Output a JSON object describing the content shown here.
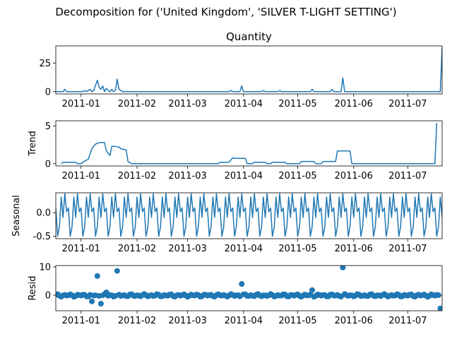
{
  "figure": {
    "suptitle": "Decomposition for ('United Kingdom', 'SILVER T-LIGHT SETTING')"
  },
  "chart_data": [
    {
      "type": "line",
      "title": "Quantity",
      "ylabel": "",
      "ylim": [
        -2,
        40
      ],
      "yticks": [
        0,
        25
      ],
      "x_range": [
        "2010-12-18",
        "2011-07-20"
      ],
      "xticks": [
        "2011-01",
        "2011-02",
        "2011-03",
        "2011-04",
        "2011-05",
        "2011-06",
        "2011-07"
      ],
      "color": "#1f77b4",
      "points": [
        [
          "2010-12-18",
          0
        ],
        [
          "2010-12-22",
          0
        ],
        [
          "2010-12-23",
          2
        ],
        [
          "2010-12-24",
          0
        ],
        [
          "2011-01-02",
          0
        ],
        [
          "2011-01-03",
          1
        ],
        [
          "2011-01-04",
          0
        ],
        [
          "2011-01-05",
          1
        ],
        [
          "2011-01-06",
          2
        ],
        [
          "2011-01-07",
          0
        ],
        [
          "2011-01-08",
          1
        ],
        [
          "2011-01-10",
          10
        ],
        [
          "2011-01-11",
          4
        ],
        [
          "2011-01-12",
          2
        ],
        [
          "2011-01-13",
          5
        ],
        [
          "2011-01-14",
          0
        ],
        [
          "2011-01-15",
          3
        ],
        [
          "2011-01-16",
          1
        ],
        [
          "2011-01-17",
          0
        ],
        [
          "2011-01-18",
          2
        ],
        [
          "2011-01-19",
          0
        ],
        [
          "2011-01-20",
          1
        ],
        [
          "2011-01-21",
          11
        ],
        [
          "2011-01-22",
          2
        ],
        [
          "2011-01-24",
          0
        ],
        [
          "2011-03-24",
          0
        ],
        [
          "2011-03-25",
          1
        ],
        [
          "2011-03-26",
          0
        ],
        [
          "2011-03-30",
          0
        ],
        [
          "2011-03-31",
          5
        ],
        [
          "2011-04-01",
          0
        ],
        [
          "2011-04-11",
          0
        ],
        [
          "2011-04-12",
          1
        ],
        [
          "2011-04-13",
          0
        ],
        [
          "2011-04-20",
          0
        ],
        [
          "2011-04-21",
          1
        ],
        [
          "2011-04-22",
          0
        ],
        [
          "2011-05-08",
          0
        ],
        [
          "2011-05-09",
          2
        ],
        [
          "2011-05-10",
          0
        ],
        [
          "2011-05-19",
          0
        ],
        [
          "2011-05-20",
          2
        ],
        [
          "2011-05-21",
          0
        ],
        [
          "2011-05-25",
          0
        ],
        [
          "2011-05-26",
          12
        ],
        [
          "2011-05-27",
          0
        ],
        [
          "2011-07-19",
          0
        ],
        [
          "2011-07-20",
          38
        ]
      ]
    },
    {
      "type": "line",
      "title": "",
      "ylabel": "Trend",
      "ylim": [
        -0.3,
        5.7
      ],
      "yticks": [
        0,
        5
      ],
      "x_range": [
        "2010-12-18",
        "2011-07-20"
      ],
      "xticks": [
        "2011-01",
        "2011-02",
        "2011-03",
        "2011-04",
        "2011-05",
        "2011-06",
        "2011-07"
      ],
      "color": "#1f77b4",
      "points": [
        [
          "2010-12-21",
          0.0
        ],
        [
          "2010-12-22",
          0.2
        ],
        [
          "2010-12-29",
          0.2
        ],
        [
          "2010-12-30",
          0.0
        ],
        [
          "2011-01-01",
          0.0
        ],
        [
          "2011-01-02",
          0.2
        ],
        [
          "2011-01-05",
          0.6
        ],
        [
          "2011-01-07",
          2.0
        ],
        [
          "2011-01-09",
          2.6
        ],
        [
          "2011-01-11",
          2.8
        ],
        [
          "2011-01-14",
          2.8
        ],
        [
          "2011-01-15",
          1.7
        ],
        [
          "2011-01-17",
          1.1
        ],
        [
          "2011-01-18",
          2.3
        ],
        [
          "2011-01-20",
          2.3
        ],
        [
          "2011-01-22",
          2.2
        ],
        [
          "2011-01-23",
          2.0
        ],
        [
          "2011-01-26",
          1.8
        ],
        [
          "2011-01-27",
          0.3
        ],
        [
          "2011-01-29",
          0.0
        ],
        [
          "2011-03-18",
          0.0
        ],
        [
          "2011-03-19",
          0.2
        ],
        [
          "2011-03-24",
          0.2
        ],
        [
          "2011-03-26",
          0.8
        ],
        [
          "2011-03-27",
          0.7
        ],
        [
          "2011-04-02",
          0.7
        ],
        [
          "2011-04-03",
          0.0
        ],
        [
          "2011-04-06",
          0.0
        ],
        [
          "2011-04-07",
          0.2
        ],
        [
          "2011-04-13",
          0.2
        ],
        [
          "2011-04-14",
          0.0
        ],
        [
          "2011-04-16",
          0.0
        ],
        [
          "2011-04-17",
          0.2
        ],
        [
          "2011-04-24",
          0.2
        ],
        [
          "2011-04-25",
          0.0
        ],
        [
          "2011-05-02",
          0.0
        ],
        [
          "2011-05-03",
          0.3
        ],
        [
          "2011-05-10",
          0.3
        ],
        [
          "2011-05-11",
          0.0
        ],
        [
          "2011-05-14",
          0.0
        ],
        [
          "2011-05-15",
          0.3
        ],
        [
          "2011-05-22",
          0.3
        ],
        [
          "2011-05-23",
          1.7
        ],
        [
          "2011-05-30",
          1.7
        ],
        [
          "2011-05-31",
          0.0
        ],
        [
          "2011-07-16",
          0.0
        ],
        [
          "2011-07-17",
          5.4
        ]
      ]
    },
    {
      "type": "line",
      "title": "",
      "ylabel": "Seasonal",
      "ylim": [
        -0.55,
        0.42
      ],
      "yticks": [
        -0.5,
        0.0
      ],
      "x_range": [
        "2010-12-18",
        "2011-07-20"
      ],
      "xticks": [
        "2011-01",
        "2011-02",
        "2011-03",
        "2011-04",
        "2011-05",
        "2011-06",
        "2011-07"
      ],
      "color": "#1f77b4",
      "pattern_start": "2010-12-18",
      "pattern_end": "2011-07-20",
      "weekly_pattern": [
        0.1,
        -0.5,
        -0.3,
        0.33,
        -0.1,
        0.4,
        0.02
      ]
    },
    {
      "type": "scatter",
      "title": "",
      "ylabel": "Resid",
      "ylim": [
        -5.5,
        10.5
      ],
      "yticks": [
        0,
        10
      ],
      "x_range": [
        "2010-12-18",
        "2011-07-20"
      ],
      "xticks": [
        "2011-01",
        "2011-02",
        "2011-03",
        "2011-04",
        "2011-05",
        "2011-06",
        "2011-07"
      ],
      "color": "#1f77b4",
      "zero_line": true,
      "outliers": [
        [
          "2011-01-10",
          6.8
        ],
        [
          "2011-01-21",
          8.6
        ],
        [
          "2011-03-31",
          4.0
        ],
        [
          "2011-05-09",
          1.8
        ],
        [
          "2011-05-26",
          9.8
        ],
        [
          "2011-07-19",
          -4.7
        ],
        [
          "2011-01-07",
          -2.2
        ],
        [
          "2011-01-12",
          -3.0
        ],
        [
          "2011-01-15",
          1.0
        ]
      ],
      "baseline": {
        "start": "2010-12-18",
        "end": "2011-07-18",
        "amplitude": 0.6
      }
    }
  ]
}
